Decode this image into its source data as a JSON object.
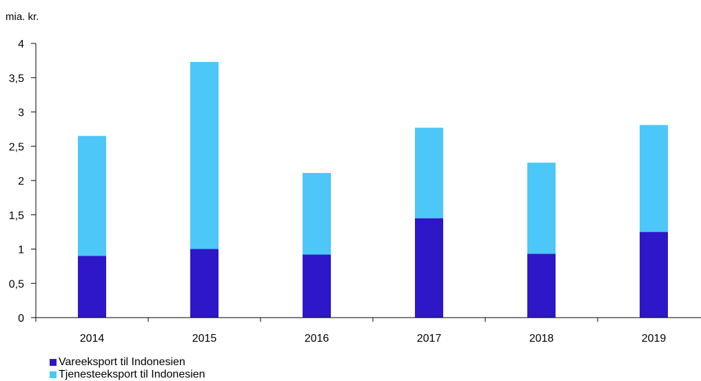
{
  "chart_data": {
    "type": "bar",
    "stacked": true,
    "unit_label": "mia. kr.",
    "categories": [
      "2014",
      "2015",
      "2016",
      "2017",
      "2018",
      "2019"
    ],
    "series": [
      {
        "name": "Vareeksport til Indonesien",
        "values": [
          0.9,
          1.0,
          0.92,
          1.45,
          0.93,
          1.25
        ],
        "color": "#2d17c8"
      },
      {
        "name": "Tjenesteeksport til Indonesien",
        "values": [
          1.75,
          2.73,
          1.19,
          1.32,
          1.33,
          1.56
        ],
        "color": "#4cc7f7"
      }
    ],
    "ylim": [
      0,
      4
    ],
    "yticks": [
      "0",
      "0,5",
      "1",
      "1,5",
      "2",
      "2,5",
      "3",
      "3,5",
      "4"
    ],
    "grid": false,
    "legend_position": "bottom-left"
  }
}
